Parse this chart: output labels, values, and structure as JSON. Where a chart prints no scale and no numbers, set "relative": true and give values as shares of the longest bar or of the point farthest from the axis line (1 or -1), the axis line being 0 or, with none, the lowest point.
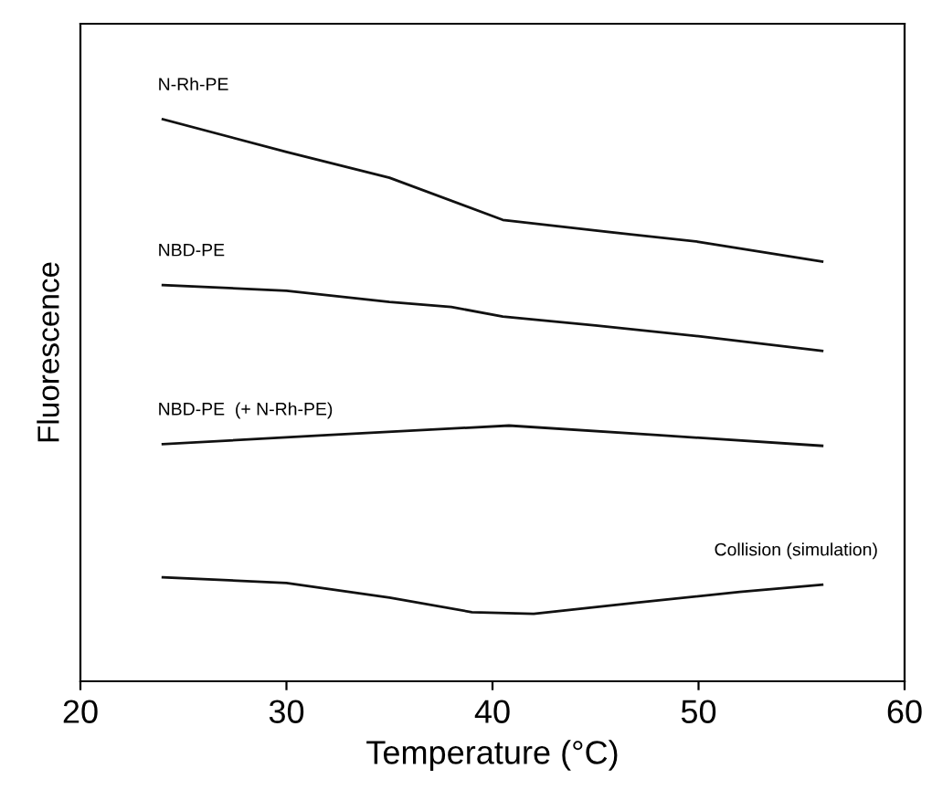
{
  "chart_data": {
    "type": "line",
    "xlabel": "Temperature (°C)",
    "ylabel": "Fluorescence",
    "relative": true,
    "xlim": [
      20,
      60
    ],
    "xticks": [
      20,
      30,
      40,
      50,
      60
    ],
    "tick_labels": "x",
    "grid": false,
    "legend": false,
    "marker": "none",
    "line_style": "solid",
    "series": [
      {
        "name": "N-Rh-PE",
        "color": "#111111",
        "x": [
          24,
          30,
          35,
          40.5,
          45,
          50,
          56
        ],
        "values": [
          1.0,
          0.942,
          0.896,
          0.821,
          0.802,
          0.782,
          0.747
        ]
      },
      {
        "name": "NBD-PE",
        "color": "#111111",
        "x": [
          24,
          30,
          35,
          38,
          40.5,
          45,
          50,
          56
        ],
        "values": [
          0.705,
          0.695,
          0.675,
          0.666,
          0.649,
          0.633,
          0.614,
          0.588
        ]
      },
      {
        "name": "NBD-PE  (+ N-Rh-PE)",
        "color": "#111111",
        "x": [
          24,
          32,
          40.8,
          48,
          56
        ],
        "values": [
          0.422,
          0.438,
          0.455,
          0.438,
          0.419
        ]
      },
      {
        "name": "Collision (simulation)",
        "color": "#111111",
        "x": [
          24,
          30,
          35,
          39,
          42,
          47,
          52,
          56
        ],
        "values": [
          0.185,
          0.175,
          0.149,
          0.123,
          0.12,
          0.14,
          0.159,
          0.172
        ]
      }
    ]
  }
}
